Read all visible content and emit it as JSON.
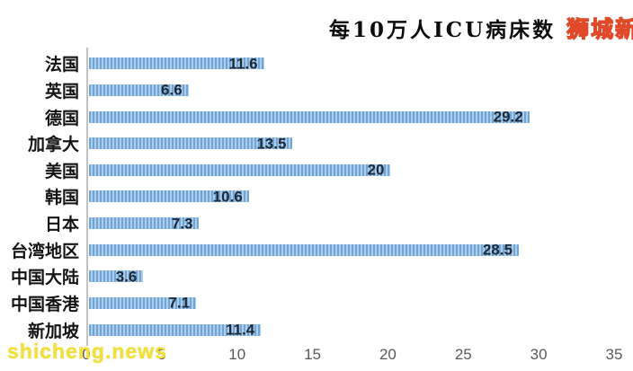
{
  "title": "每10万人ICU病床数",
  "logo": "狮城新闻",
  "watermark": "shicheng.news",
  "colors": {
    "bar_base": "#6ea4d6",
    "bar_stripe": "#aecdea",
    "value_label": "#1f2a38",
    "category_label": "#141414",
    "axis_line": "#c2c2c2",
    "tick_label": "#595959",
    "title_color": "#0d0d0d",
    "logo_fill": "#ffe81f",
    "logo_stroke": "#e04a2a",
    "watermark_color": "#f2e03a"
  },
  "chart_data": {
    "type": "bar",
    "orientation": "horizontal",
    "title": "每10万人ICU病床数",
    "categories": [
      "法国",
      "英国",
      "德国",
      "加拿大",
      "美国",
      "韩国",
      "日本",
      "台湾地区",
      "中国大陆",
      "中国香港",
      "新加坡"
    ],
    "values": [
      11.6,
      6.6,
      29.2,
      13.5,
      20,
      10.6,
      7.3,
      28.5,
      3.6,
      7.1,
      11.4
    ],
    "value_labels": [
      "11.6",
      "6.6",
      "29.2",
      "13.5",
      "20",
      "10.6",
      "7.3",
      "28.5",
      "3.6",
      "7.1",
      "11.4"
    ],
    "xlabel": "",
    "ylabel": "",
    "xlim": [
      0,
      35
    ],
    "x_ticks": [
      0,
      5,
      10,
      15,
      20,
      25,
      30,
      35
    ],
    "grid": false,
    "legend": false,
    "value_label_position": "inside-end"
  }
}
